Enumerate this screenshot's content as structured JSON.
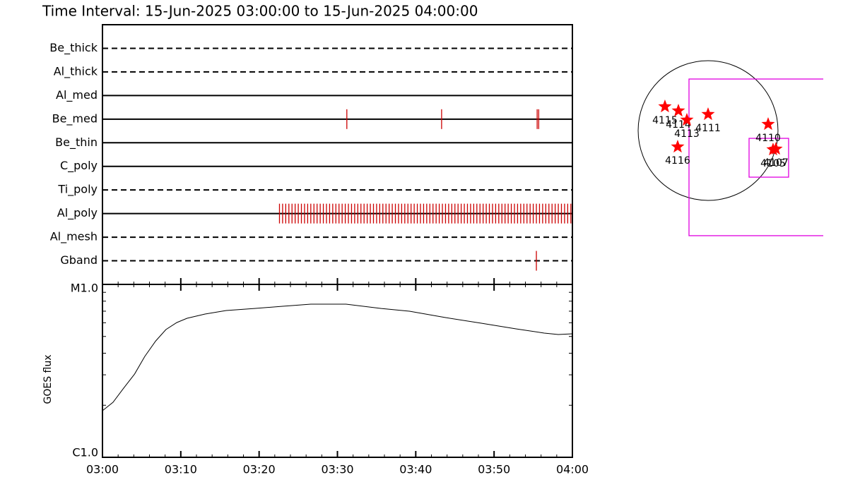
{
  "title": "Time Interval: 15-Jun-2025 03:00:00 to 15-Jun-2025 04:00:00",
  "chart_data": [
    {
      "type": "timeline",
      "xlim": [
        0,
        60
      ],
      "series": [
        {
          "name": "Be_thick",
          "dashed": true,
          "color": "#cc0000",
          "values": []
        },
        {
          "name": "Al_thick",
          "dashed": true,
          "color": "#cc0000",
          "values": []
        },
        {
          "name": "Al_med",
          "dashed": false,
          "color": "#cc0000",
          "values": []
        },
        {
          "name": "Be_med",
          "dashed": false,
          "color": "#cc0000",
          "values": [
            31.2,
            43.3,
            55.5,
            55.7
          ]
        },
        {
          "name": "Be_thin",
          "dashed": false,
          "color": "#cc0000",
          "values": []
        },
        {
          "name": "C_poly",
          "dashed": false,
          "color": "#cc0000",
          "values": []
        },
        {
          "name": "Ti_poly",
          "dashed": true,
          "color": "#cc0000",
          "values": []
        },
        {
          "name": "Al_poly",
          "dashed": false,
          "color": "#cc0000",
          "values": [
            22.6,
            23,
            23.4,
            23.8,
            24.2,
            24.6,
            25,
            25.4,
            25.8,
            26.2,
            26.6,
            27,
            27.4,
            27.8,
            28.2,
            28.6,
            29,
            29.4,
            29.8,
            30.2,
            30.6,
            31,
            31.4,
            31.8,
            32.2,
            32.6,
            33,
            33.4,
            33.8,
            34.2,
            34.6,
            35,
            35.4,
            35.8,
            36.2,
            36.6,
            37,
            37.4,
            37.8,
            38.2,
            38.6,
            39,
            39.4,
            39.8,
            40.2,
            40.6,
            41,
            41.4,
            41.8,
            42.2,
            42.6,
            43,
            43.4,
            43.8,
            44.2,
            44.6,
            45,
            45.4,
            45.8,
            46.2,
            46.6,
            47,
            47.4,
            47.8,
            48.2,
            48.6,
            49,
            49.4,
            49.8,
            50.2,
            50.6,
            51,
            51.4,
            51.8,
            52.2,
            52.6,
            53,
            53.4,
            53.8,
            54.2,
            54.6,
            55,
            55.4,
            55.8,
            56.2,
            56.6,
            57,
            57.4,
            57.8,
            58.2,
            58.6,
            59,
            59.4,
            59.8
          ]
        },
        {
          "name": "Al_mesh",
          "dashed": true,
          "color": "#cc0000",
          "values": []
        },
        {
          "name": "Gband",
          "dashed": true,
          "color": "#cc0000",
          "values": [
            55.4
          ]
        }
      ]
    },
    {
      "type": "line",
      "ylabel": "GOES flux",
      "color": "#000000",
      "log_y": true,
      "x": [
        0,
        1.35,
        2.7,
        4.1,
        5.4,
        6.8,
        8.1,
        9.5,
        10.8,
        13.1,
        15.8,
        19.4,
        23.0,
        26.6,
        31.1,
        35.6,
        39.2,
        43.8,
        48.3,
        52.8,
        56.4,
        58.2,
        60
      ],
      "values": [
        1.86e-06,
        2.08e-06,
        2.51e-06,
        3.03e-06,
        3.83e-06,
        4.71e-06,
        5.48e-06,
        6.02e-06,
        6.37e-06,
        6.74e-06,
        7.06e-06,
        7.26e-06,
        7.47e-06,
        7.69e-06,
        7.69e-06,
        7.26e-06,
        7e-06,
        6.43e-06,
        5.97e-06,
        5.53e-06,
        5.23e-06,
        5.13e-06,
        5.18e-06
      ],
      "xlim": [
        0,
        60
      ],
      "xticks": [
        {
          "value": 0,
          "label": "03:00"
        },
        {
          "value": 10,
          "label": "03:10"
        },
        {
          "value": 20,
          "label": "03:20"
        },
        {
          "value": 30,
          "label": "03:30"
        },
        {
          "value": 40,
          "label": "03:40"
        },
        {
          "value": 50,
          "label": "03:50"
        },
        {
          "value": 60,
          "label": "04:00"
        }
      ],
      "xminorticks": [
        2,
        4,
        6,
        8,
        12,
        14,
        16,
        18,
        22,
        24,
        26,
        28,
        32,
        34,
        36,
        38,
        42,
        44,
        46,
        48,
        52,
        54,
        56,
        58
      ],
      "ylim": [
        1e-06,
        1e-05
      ],
      "yticks": [
        {
          "value": 1e-06,
          "label": "C1.0"
        },
        {
          "value": 1e-05,
          "label": "M1.0"
        }
      ],
      "yminorticks": [
        2e-06,
        3e-06,
        4e-06,
        5e-06,
        6e-06,
        7e-06,
        8e-06,
        9e-06
      ]
    },
    {
      "type": "map",
      "xlim": [
        -1171,
        1565
      ],
      "ylim": [
        -1488,
        1200
      ],
      "solar_radius": 950,
      "star_color": "#ff0000",
      "fov_color": "#e000e0",
      "regions": [
        {
          "label": "4115",
          "x": -586,
          "y": 326
        },
        {
          "label": "4114",
          "x": -403,
          "y": 269
        },
        {
          "label": "4113",
          "x": -288,
          "y": 144
        },
        {
          "label": "4111",
          "x": 0,
          "y": 221
        },
        {
          "label": "4110",
          "x": 816,
          "y": 86
        },
        {
          "label": "4116",
          "x": -413,
          "y": -221
        },
        {
          "label": "4105",
          "x": 883,
          "y": -259
        },
        {
          "label": "4107",
          "x": 922,
          "y": -250
        }
      ],
      "fov": [
        {
          "x0": -259,
          "x1": 1700,
          "y0": -1430,
          "y1": 701
        },
        {
          "x0": 557,
          "x1": 1094,
          "y0": -634,
          "y1": -106
        }
      ]
    }
  ]
}
